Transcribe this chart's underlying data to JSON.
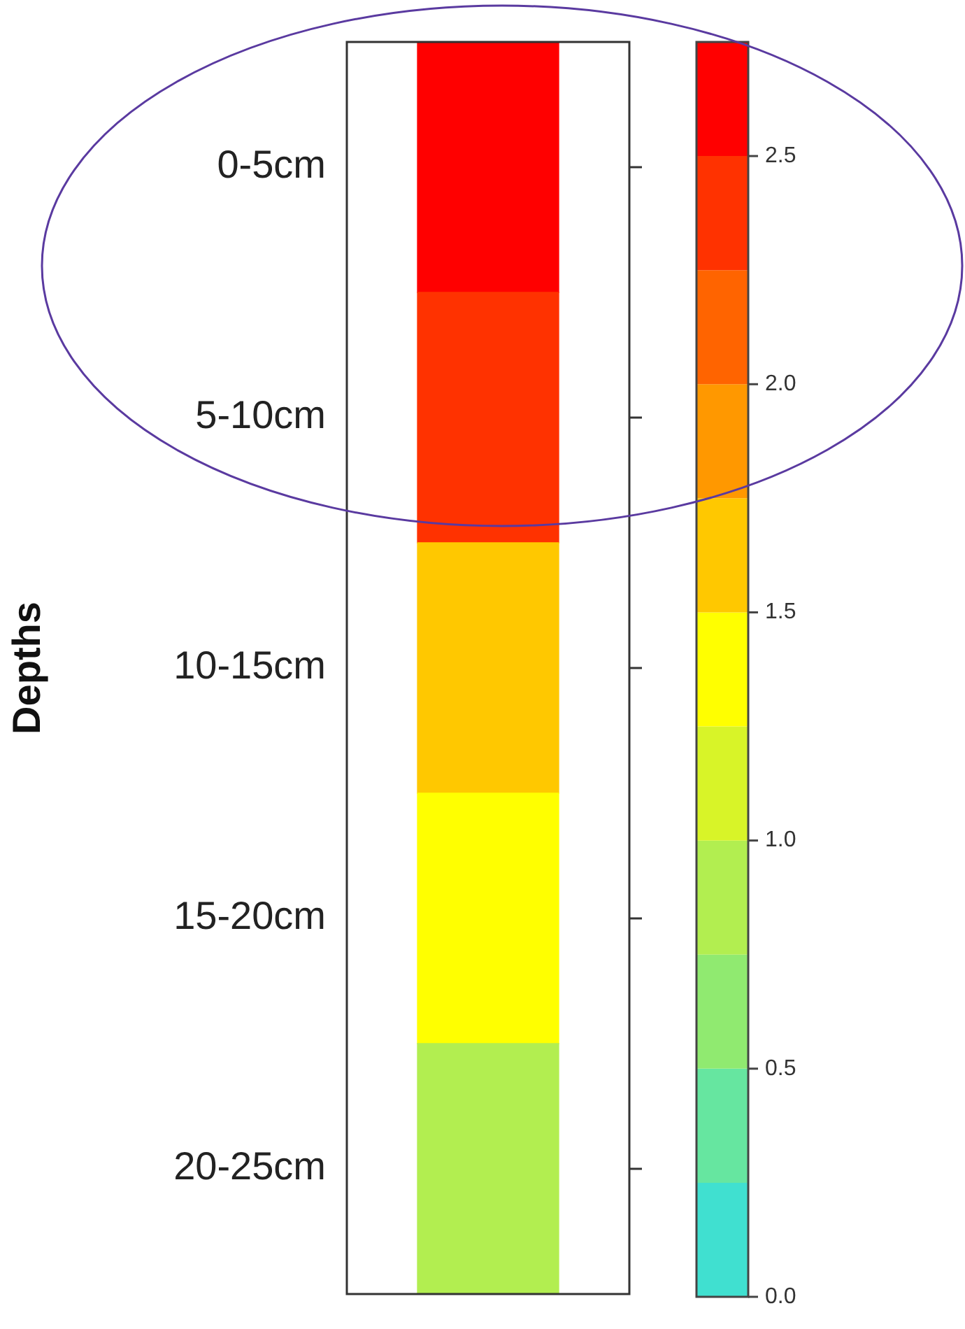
{
  "chart_data": {
    "type": "heatmap",
    "ylabel": "Depths",
    "categories": [
      null
    ],
    "y_categories": [
      "0-5cm",
      "5-10cm",
      "10-15cm",
      "15-20cm",
      "20-25cm"
    ],
    "cells": [
      [
        2.6
      ],
      [
        2.4
      ],
      [
        1.6
      ],
      [
        1.4
      ],
      [
        0.9
      ]
    ],
    "clim": [
      0,
      2.75
    ],
    "cticks": [
      {
        "value": 0,
        "label": "0.0"
      },
      0.5,
      {
        "value": 1,
        "label": "1.0"
      },
      1.5,
      {
        "value": 2,
        "label": "2.0"
      },
      2.5
    ],
    "colors": [
      "#40e0d0",
      "#66e6a0",
      "#90ea70",
      "#b2ee50",
      "#d8f428",
      "#ffff00",
      "#ffc800",
      "#ff9800",
      "#ff6400",
      "#ff3200",
      "#ff0000"
    ]
  }
}
